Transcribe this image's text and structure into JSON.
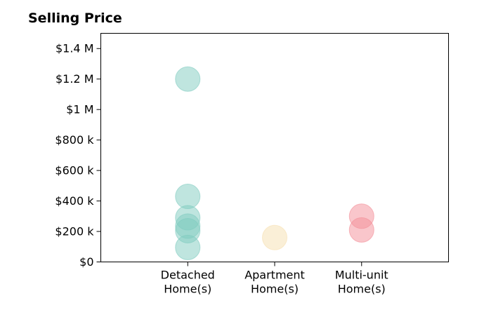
{
  "chart_data": {
    "type": "scatter",
    "title": "Selling Price",
    "xlabel": "",
    "ylabel": "",
    "categories": [
      [
        "Detached",
        "Home(s)"
      ],
      [
        "Apartment",
        "Home(s)"
      ],
      [
        "Multi-unit",
        "Home(s)"
      ]
    ],
    "xlim": [
      -1,
      3
    ],
    "ylim": [
      0,
      1500000
    ],
    "yticks": [
      0,
      200000,
      400000,
      600000,
      800000,
      1000000,
      1200000,
      1400000
    ],
    "ytick_labels": [
      "$0",
      "$200 k",
      "$400 k",
      "$600 k",
      "$800 k",
      "$1 M",
      "$1.2 M",
      "$1.4 M"
    ],
    "grid": false,
    "series": [
      {
        "category_index": 0,
        "color": "#7fcbc0",
        "values": [
          1200000,
          430000,
          290000,
          235000,
          205000,
          95000
        ]
      },
      {
        "category_index": 1,
        "color": "#f6dfb0",
        "values": [
          160000
        ]
      },
      {
        "category_index": 2,
        "color": "#f48e98",
        "values": [
          300000,
          210000
        ]
      }
    ]
  }
}
